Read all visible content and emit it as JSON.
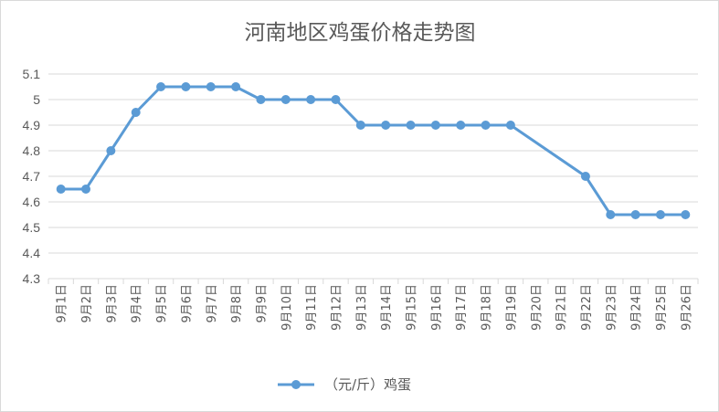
{
  "chart_data": {
    "type": "line",
    "title": "河南地区鸡蛋价格走势图",
    "xlabel": "",
    "ylabel": "",
    "ylim": [
      4.3,
      5.1
    ],
    "yticks": [
      "4.3",
      "4.4",
      "4.5",
      "4.6",
      "4.7",
      "4.8",
      "4.9",
      "5",
      "5.1"
    ],
    "grid": true,
    "legend_position": "bottom",
    "categories": [
      "9月1日",
      "9月2日",
      "9月3日",
      "9月4日",
      "9月5日",
      "9月6日",
      "9月7日",
      "9月8日",
      "9月9日",
      "9月10日",
      "9月11日",
      "9月12日",
      "9月13日",
      "9月14日",
      "9月15日",
      "9月16日",
      "9月17日",
      "9月18日",
      "9月19日",
      "9月20日",
      "9月21日",
      "9月22日",
      "9月23日",
      "9月24日",
      "9月25日",
      "9月26日"
    ],
    "series": [
      {
        "name": "（元/斤）鸡蛋",
        "color": "#5b9bd5",
        "values": [
          4.65,
          4.65,
          4.8,
          4.95,
          5.05,
          5.05,
          5.05,
          5.05,
          5.0,
          5.0,
          5.0,
          5.0,
          4.9,
          4.9,
          4.9,
          4.9,
          4.9,
          4.9,
          4.9,
          null,
          null,
          4.7,
          4.55,
          4.55,
          4.55,
          4.55
        ]
      }
    ]
  }
}
